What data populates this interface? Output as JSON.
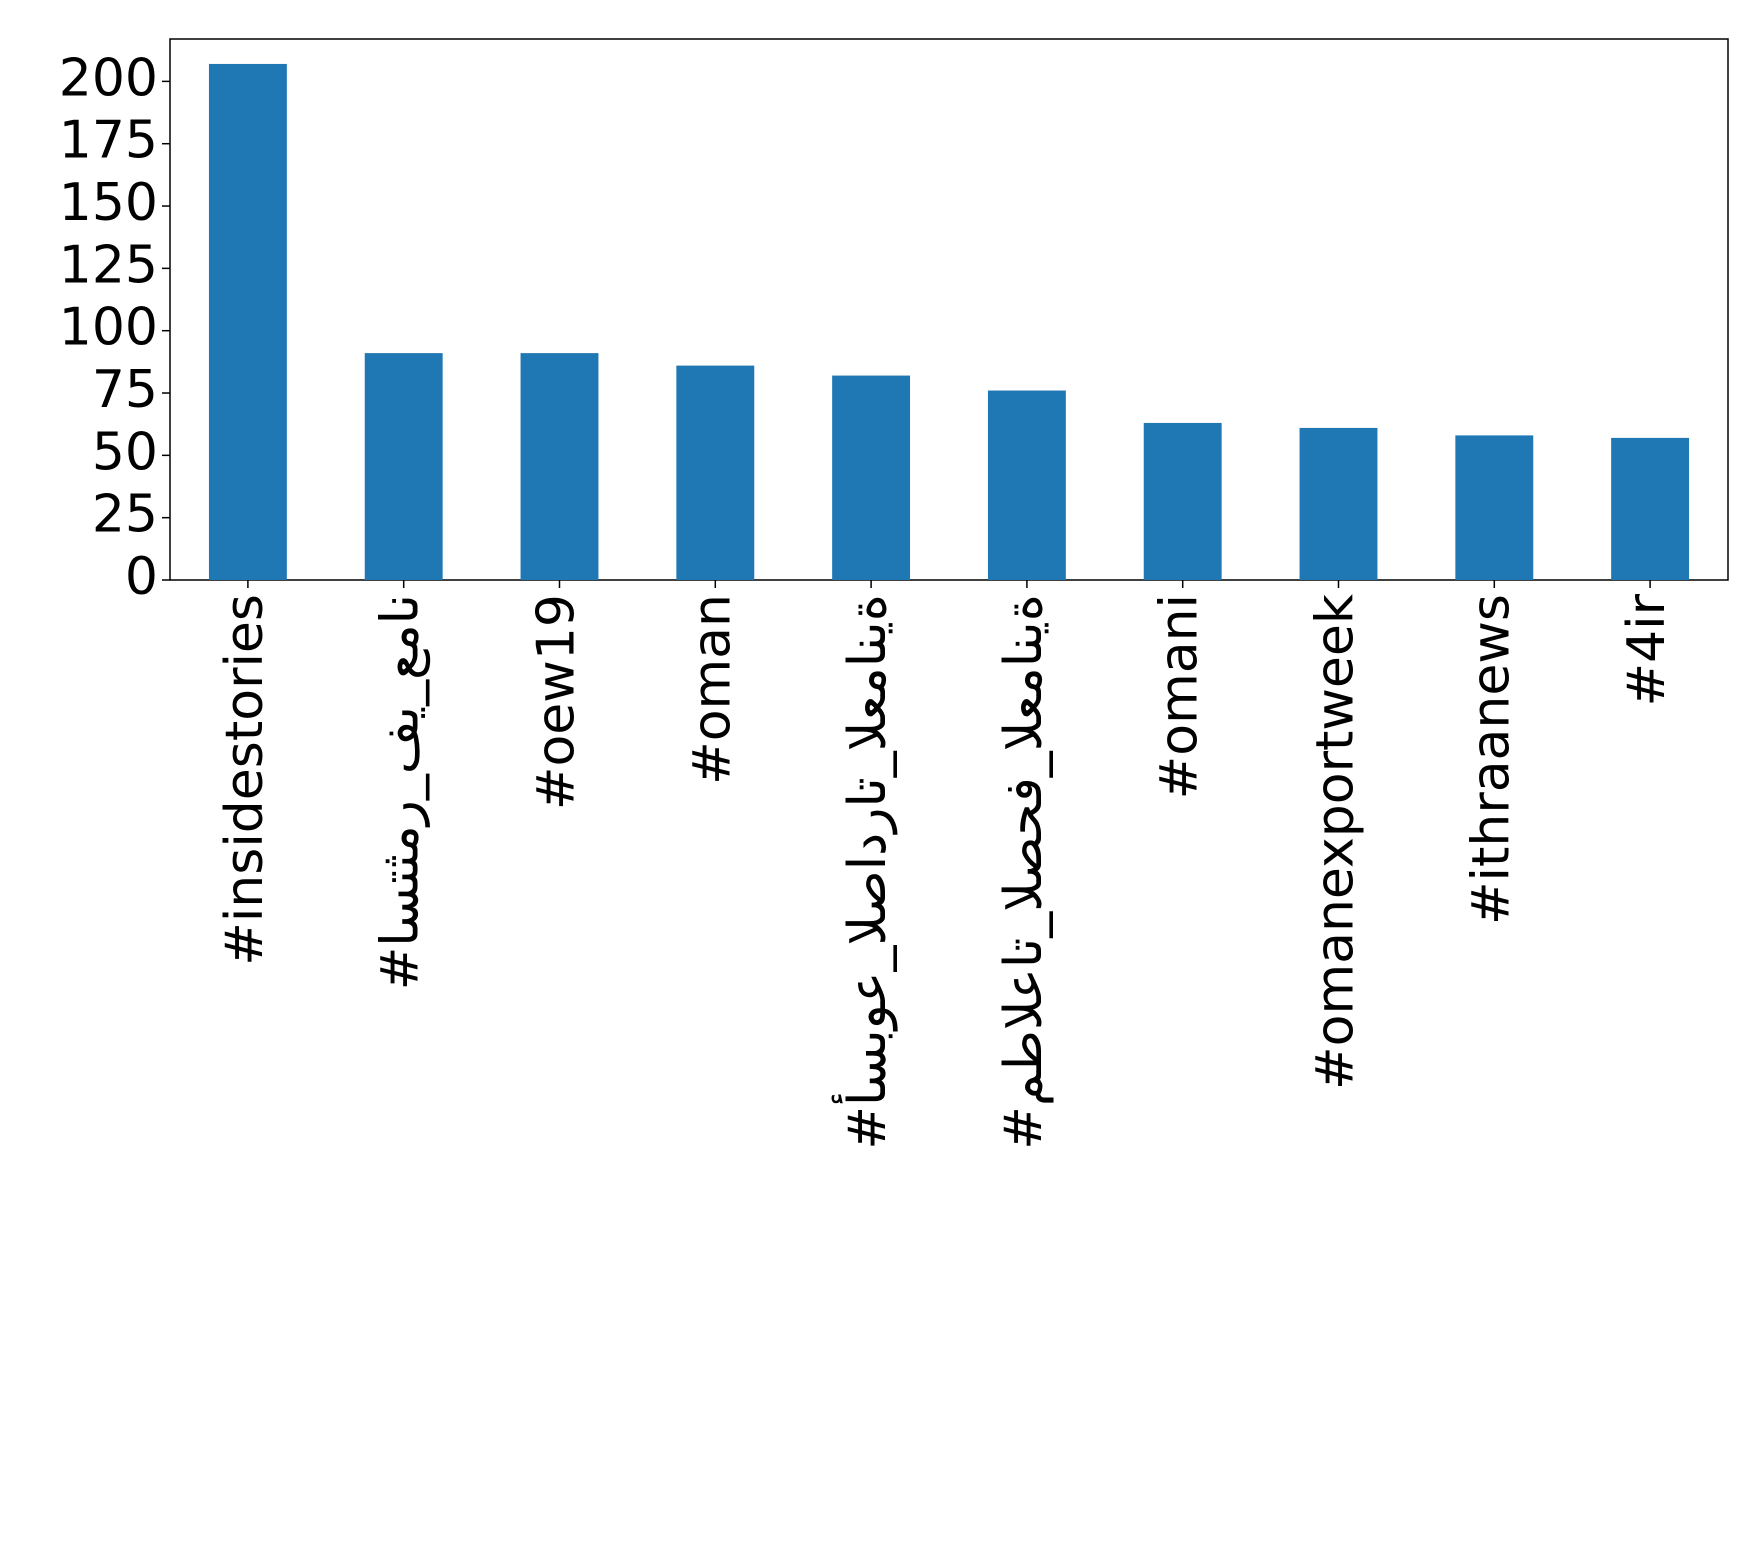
{
  "chart_data": {
    "type": "bar",
    "categories": [
      "#insidestories",
      "#استثمر_في_عمان",
      "#oew19",
      "#oman",
      "#أسبوع_الصادرات_العمانية",
      "#مطالعات_الصحف_العمانية",
      "#omani",
      "#omanexportweek",
      "#ithraanews",
      "#4ir"
    ],
    "values": [
      207,
      91,
      91,
      86,
      82,
      76,
      63,
      61,
      58,
      57
    ],
    "color": "#1f77b4",
    "ylim": [
      0,
      217
    ],
    "yticks": [
      0,
      25,
      50,
      75,
      100,
      125,
      150,
      175,
      200
    ],
    "grid": false
  }
}
